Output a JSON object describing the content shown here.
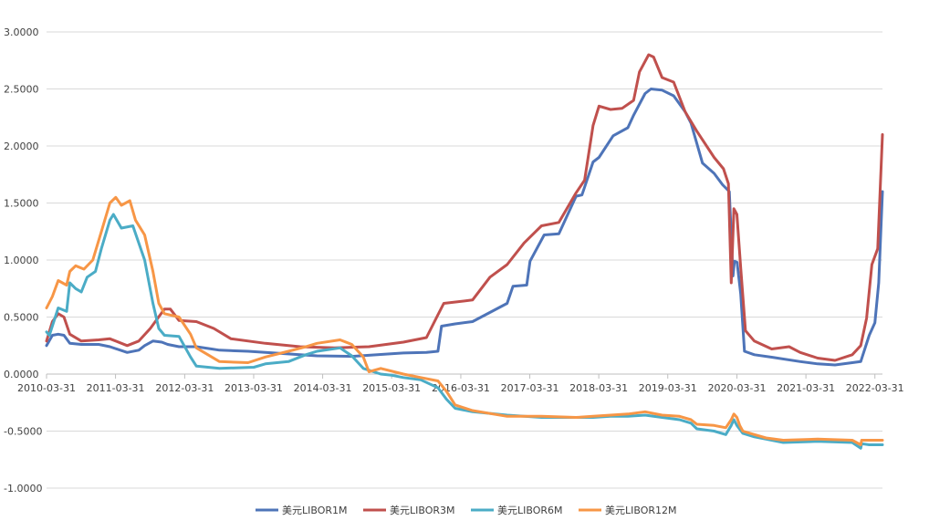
{
  "chart_data": {
    "type": "line",
    "title": "",
    "xlabel": "",
    "ylabel": "",
    "ylim": [
      -1.0,
      3.0
    ],
    "y_ticks": [
      "3.0000",
      "2.5000",
      "2.0000",
      "1.5000",
      "1.0000",
      "0.5000",
      "0.0000",
      "-0.5000",
      "-1.0000"
    ],
    "x_ticks": [
      "2010-03-31",
      "2011-03-31",
      "2012-03-31",
      "2013-03-31",
      "2014-03-31",
      "2015-03-31",
      "2016-03-31",
      "2017-03-31",
      "2018-03-31",
      "2019-03-31",
      "2020-03-31",
      "2021-03-31",
      "2022-03-31"
    ],
    "x_range": [
      "2010-03-31",
      "2022-05-10"
    ],
    "grid": "horizontal",
    "legend_position": "bottom",
    "series": [
      {
        "name": "美元LIBOR1M",
        "color": "#4e74b8",
        "points": [
          [
            "2010-03-31",
            0.25
          ],
          [
            "2010-05-01",
            0.34
          ],
          [
            "2010-06-01",
            0.35
          ],
          [
            "2010-07-01",
            0.34
          ],
          [
            "2010-08-01",
            0.27
          ],
          [
            "2010-10-01",
            0.26
          ],
          [
            "2011-01-01",
            0.26
          ],
          [
            "2011-03-01",
            0.24
          ],
          [
            "2011-06-01",
            0.19
          ],
          [
            "2011-08-01",
            0.21
          ],
          [
            "2011-09-01",
            0.25
          ],
          [
            "2011-10-15",
            0.29
          ],
          [
            "2011-12-01",
            0.28
          ],
          [
            "2012-01-01",
            0.26
          ],
          [
            "2012-03-01",
            0.24
          ],
          [
            "2012-06-01",
            0.24
          ],
          [
            "2012-10-01",
            0.21
          ],
          [
            "2013-03-01",
            0.2
          ],
          [
            "2013-09-01",
            0.18
          ],
          [
            "2014-03-01",
            0.16
          ],
          [
            "2014-09-01",
            0.155
          ],
          [
            "2015-03-01",
            0.175
          ],
          [
            "2015-06-01",
            0.185
          ],
          [
            "2015-10-01",
            0.19
          ],
          [
            "2015-12-01",
            0.2
          ],
          [
            "2015-12-20",
            0.42
          ],
          [
            "2016-03-01",
            0.44
          ],
          [
            "2016-06-01",
            0.46
          ],
          [
            "2016-12-01",
            0.62
          ],
          [
            "2017-01-01",
            0.77
          ],
          [
            "2017-03-15",
            0.78
          ],
          [
            "2017-04-01",
            0.99
          ],
          [
            "2017-06-15",
            1.22
          ],
          [
            "2017-09-01",
            1.23
          ],
          [
            "2017-12-01",
            1.56
          ],
          [
            "2018-01-01",
            1.57
          ],
          [
            "2018-03-01",
            1.86
          ],
          [
            "2018-04-01",
            1.9
          ],
          [
            "2018-06-15",
            2.09
          ],
          [
            "2018-09-01",
            2.16
          ],
          [
            "2018-10-01",
            2.27
          ],
          [
            "2018-12-01",
            2.46
          ],
          [
            "2019-01-01",
            2.5
          ],
          [
            "2019-03-01",
            2.49
          ],
          [
            "2019-05-01",
            2.44
          ],
          [
            "2019-07-01",
            2.3
          ],
          [
            "2019-08-01",
            2.2
          ],
          [
            "2019-10-01",
            1.85
          ],
          [
            "2019-12-01",
            1.76
          ],
          [
            "2020-01-15",
            1.66
          ],
          [
            "2020-02-20",
            1.6
          ],
          [
            "2020-03-10",
            0.86
          ],
          [
            "2020-03-18",
            0.99
          ],
          [
            "2020-04-01",
            0.98
          ],
          [
            "2020-04-20",
            0.7
          ],
          [
            "2020-05-10",
            0.2
          ],
          [
            "2020-07-01",
            0.17
          ],
          [
            "2020-10-01",
            0.148
          ],
          [
            "2021-03-01",
            0.11
          ],
          [
            "2021-06-01",
            0.09
          ],
          [
            "2021-09-01",
            0.08
          ],
          [
            "2021-12-01",
            0.1
          ],
          [
            "2022-01-15",
            0.11
          ],
          [
            "2022-03-01",
            0.34
          ],
          [
            "2022-03-31",
            0.45
          ],
          [
            "2022-04-20",
            0.8
          ],
          [
            "2022-05-10",
            1.6
          ]
        ]
      },
      {
        "name": "美元LIBOR3M",
        "color": "#c0504d",
        "points": [
          [
            "2010-03-31",
            0.29
          ],
          [
            "2010-05-01",
            0.46
          ],
          [
            "2010-06-01",
            0.53
          ],
          [
            "2010-07-01",
            0.5
          ],
          [
            "2010-08-01",
            0.35
          ],
          [
            "2010-10-01",
            0.29
          ],
          [
            "2011-01-01",
            0.3
          ],
          [
            "2011-03-01",
            0.31
          ],
          [
            "2011-06-01",
            0.25
          ],
          [
            "2011-08-01",
            0.29
          ],
          [
            "2011-10-01",
            0.4
          ],
          [
            "2011-12-15",
            0.57
          ],
          [
            "2012-01-15",
            0.57
          ],
          [
            "2012-03-01",
            0.47
          ],
          [
            "2012-06-01",
            0.46
          ],
          [
            "2012-09-01",
            0.4
          ],
          [
            "2012-12-01",
            0.31
          ],
          [
            "2013-06-01",
            0.27
          ],
          [
            "2013-12-01",
            0.24
          ],
          [
            "2014-06-01",
            0.23
          ],
          [
            "2014-12-01",
            0.24
          ],
          [
            "2015-06-01",
            0.28
          ],
          [
            "2015-10-01",
            0.32
          ],
          [
            "2015-12-01",
            0.52
          ],
          [
            "2016-01-01",
            0.62
          ],
          [
            "2016-06-01",
            0.65
          ],
          [
            "2016-09-01",
            0.85
          ],
          [
            "2016-12-01",
            0.96
          ],
          [
            "2017-03-01",
            1.15
          ],
          [
            "2017-06-01",
            1.3
          ],
          [
            "2017-09-01",
            1.33
          ],
          [
            "2017-12-01",
            1.59
          ],
          [
            "2018-01-15",
            1.7
          ],
          [
            "2018-03-01",
            2.18
          ],
          [
            "2018-04-01",
            2.35
          ],
          [
            "2018-06-01",
            2.32
          ],
          [
            "2018-08-01",
            2.33
          ],
          [
            "2018-10-01",
            2.4
          ],
          [
            "2018-11-01",
            2.65
          ],
          [
            "2018-12-20",
            2.8
          ],
          [
            "2019-01-15",
            2.78
          ],
          [
            "2019-03-01",
            2.6
          ],
          [
            "2019-05-01",
            2.56
          ],
          [
            "2019-07-01",
            2.3
          ],
          [
            "2019-09-01",
            2.13
          ],
          [
            "2019-12-01",
            1.9
          ],
          [
            "2020-01-20",
            1.8
          ],
          [
            "2020-02-15",
            1.67
          ],
          [
            "2020-03-01",
            0.8
          ],
          [
            "2020-03-15",
            1.45
          ],
          [
            "2020-03-31",
            1.4
          ],
          [
            "2020-04-20",
            0.93
          ],
          [
            "2020-05-15",
            0.38
          ],
          [
            "2020-07-01",
            0.29
          ],
          [
            "2020-10-01",
            0.22
          ],
          [
            "2021-01-01",
            0.24
          ],
          [
            "2021-03-01",
            0.19
          ],
          [
            "2021-06-01",
            0.14
          ],
          [
            "2021-09-01",
            0.12
          ],
          [
            "2021-12-01",
            0.17
          ],
          [
            "2022-01-15",
            0.25
          ],
          [
            "2022-02-15",
            0.49
          ],
          [
            "2022-03-15",
            0.96
          ],
          [
            "2022-04-15",
            1.1
          ],
          [
            "2022-05-10",
            2.1
          ]
        ]
      },
      {
        "name": "美元LIBOR6M",
        "color": "#4bacc6",
        "points": [
          [
            "2010-03-31",
            0.37
          ],
          [
            "2010-04-15",
            0.34
          ],
          [
            "2010-06-01",
            0.58
          ],
          [
            "2010-07-15",
            0.55
          ],
          [
            "2010-08-01",
            0.8
          ],
          [
            "2010-09-01",
            0.75
          ],
          [
            "2010-10-01",
            0.72
          ],
          [
            "2010-11-01",
            0.85
          ],
          [
            "2010-12-15",
            0.9
          ],
          [
            "2011-01-15",
            1.1
          ],
          [
            "2011-03-01",
            1.35
          ],
          [
            "2011-03-20",
            1.4
          ],
          [
            "2011-05-01",
            1.28
          ],
          [
            "2011-07-01",
            1.3
          ],
          [
            "2011-09-01",
            1.0
          ],
          [
            "2011-10-15",
            0.62
          ],
          [
            "2011-11-15",
            0.4
          ],
          [
            "2011-12-15",
            0.34
          ],
          [
            "2012-03-01",
            0.33
          ],
          [
            "2012-05-01",
            0.15
          ],
          [
            "2012-06-01",
            0.07
          ],
          [
            "2012-10-01",
            0.05
          ],
          [
            "2013-04-01",
            0.06
          ],
          [
            "2013-06-01",
            0.09
          ],
          [
            "2013-10-01",
            0.11
          ],
          [
            "2014-01-01",
            0.17
          ],
          [
            "2014-03-01",
            0.2
          ],
          [
            "2014-07-01",
            0.23
          ],
          [
            "2014-09-01",
            0.16
          ],
          [
            "2014-11-01",
            0.05
          ],
          [
            "2015-02-01",
            0.0
          ],
          [
            "2015-04-01",
            -0.01
          ],
          [
            "2015-06-01",
            -0.03
          ],
          [
            "2015-09-01",
            -0.05
          ],
          [
            "2015-12-01",
            -0.12
          ],
          [
            "2016-01-15",
            -0.22
          ],
          [
            "2016-03-01",
            -0.3
          ],
          [
            "2016-06-01",
            -0.33
          ],
          [
            "2016-12-01",
            -0.36
          ],
          [
            "2017-06-01",
            -0.38
          ],
          [
            "2017-12-01",
            -0.38
          ],
          [
            "2018-03-01",
            -0.38
          ],
          [
            "2018-06-01",
            -0.37
          ],
          [
            "2018-09-01",
            -0.37
          ],
          [
            "2018-12-01",
            -0.36
          ],
          [
            "2019-03-01",
            -0.38
          ],
          [
            "2019-06-01",
            -0.4
          ],
          [
            "2019-08-01",
            -0.43
          ],
          [
            "2019-09-01",
            -0.48
          ],
          [
            "2019-12-01",
            -0.5
          ],
          [
            "2020-02-01",
            -0.53
          ],
          [
            "2020-03-01",
            -0.45
          ],
          [
            "2020-03-15",
            -0.4
          ],
          [
            "2020-03-31",
            -0.45
          ],
          [
            "2020-05-01",
            -0.52
          ],
          [
            "2020-07-01",
            -0.55
          ],
          [
            "2020-09-01",
            -0.57
          ],
          [
            "2020-12-01",
            -0.6
          ],
          [
            "2021-06-01",
            -0.59
          ],
          [
            "2021-12-01",
            -0.6
          ],
          [
            "2022-01-15",
            -0.65
          ],
          [
            "2022-01-20",
            -0.61
          ],
          [
            "2022-03-01",
            -0.62
          ],
          [
            "2022-05-10",
            -0.62
          ]
        ]
      },
      {
        "name": "美元LIBOR12M",
        "color": "#f79646",
        "points": [
          [
            "2010-03-31",
            0.58
          ],
          [
            "2010-05-01",
            0.68
          ],
          [
            "2010-06-01",
            0.82
          ],
          [
            "2010-07-15",
            0.78
          ],
          [
            "2010-08-01",
            0.9
          ],
          [
            "2010-09-01",
            0.95
          ],
          [
            "2010-10-15",
            0.92
          ],
          [
            "2010-12-01",
            1.0
          ],
          [
            "2011-01-15",
            1.25
          ],
          [
            "2011-03-01",
            1.5
          ],
          [
            "2011-04-01",
            1.55
          ],
          [
            "2011-05-01",
            1.48
          ],
          [
            "2011-06-15",
            1.52
          ],
          [
            "2011-07-15",
            1.35
          ],
          [
            "2011-09-01",
            1.22
          ],
          [
            "2011-10-15",
            0.9
          ],
          [
            "2011-11-15",
            0.62
          ],
          [
            "2011-12-15",
            0.53
          ],
          [
            "2012-03-01",
            0.5
          ],
          [
            "2012-05-01",
            0.35
          ],
          [
            "2012-06-01",
            0.23
          ],
          [
            "2012-10-01",
            0.11
          ],
          [
            "2013-03-01",
            0.1
          ],
          [
            "2013-06-01",
            0.15
          ],
          [
            "2013-10-01",
            0.2
          ],
          [
            "2014-01-01",
            0.24
          ],
          [
            "2014-03-01",
            0.27
          ],
          [
            "2014-07-01",
            0.3
          ],
          [
            "2014-09-01",
            0.26
          ],
          [
            "2014-11-01",
            0.15
          ],
          [
            "2014-12-01",
            0.02
          ],
          [
            "2015-02-01",
            0.05
          ],
          [
            "2015-06-01",
            0.0
          ],
          [
            "2015-09-01",
            -0.03
          ],
          [
            "2015-12-01",
            -0.06
          ],
          [
            "2016-01-15",
            -0.15
          ],
          [
            "2016-03-01",
            -0.27
          ],
          [
            "2016-06-01",
            -0.32
          ],
          [
            "2016-12-01",
            -0.37
          ],
          [
            "2017-06-01",
            -0.37
          ],
          [
            "2017-12-01",
            -0.38
          ],
          [
            "2018-03-01",
            -0.37
          ],
          [
            "2018-06-01",
            -0.36
          ],
          [
            "2018-09-01",
            -0.35
          ],
          [
            "2018-12-01",
            -0.33
          ],
          [
            "2019-03-01",
            -0.36
          ],
          [
            "2019-06-01",
            -0.37
          ],
          [
            "2019-08-01",
            -0.4
          ],
          [
            "2019-09-01",
            -0.44
          ],
          [
            "2019-12-01",
            -0.45
          ],
          [
            "2020-02-01",
            -0.47
          ],
          [
            "2020-03-01",
            -0.4
          ],
          [
            "2020-03-15",
            -0.35
          ],
          [
            "2020-03-31",
            -0.38
          ],
          [
            "2020-04-15",
            -0.45
          ],
          [
            "2020-05-01",
            -0.5
          ],
          [
            "2020-07-01",
            -0.53
          ],
          [
            "2020-09-01",
            -0.56
          ],
          [
            "2020-12-01",
            -0.58
          ],
          [
            "2021-06-01",
            -0.57
          ],
          [
            "2021-12-01",
            -0.58
          ],
          [
            "2022-01-15",
            -0.62
          ],
          [
            "2022-01-20",
            -0.58
          ],
          [
            "2022-03-01",
            -0.58
          ],
          [
            "2022-05-10",
            -0.58
          ]
        ]
      }
    ]
  }
}
